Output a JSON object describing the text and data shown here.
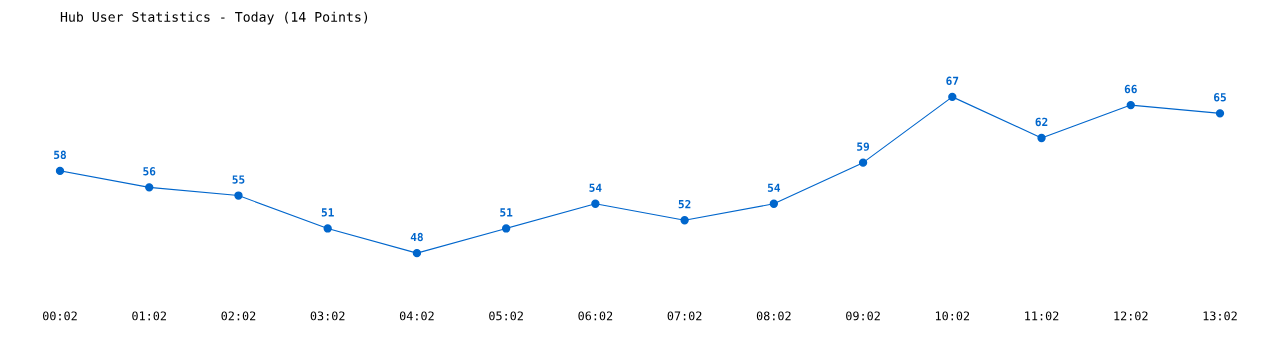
{
  "chart_data": {
    "type": "line",
    "title": "Hub User Statistics - Today (14 Points)",
    "categories": [
      "00:02",
      "01:02",
      "02:02",
      "03:02",
      "04:02",
      "05:02",
      "06:02",
      "07:02",
      "08:02",
      "09:02",
      "10:02",
      "11:02",
      "12:02",
      "13:02"
    ],
    "series": [
      {
        "color": "#0066cc",
        "values": [
          58,
          56,
          55,
          51,
          48,
          51,
          54,
          52,
          54,
          59,
          67,
          62,
          66,
          65
        ]
      }
    ],
    "data_labels": true,
    "marker": "circle",
    "line_style": "solid",
    "grid": false,
    "tick_labels": "x"
  }
}
